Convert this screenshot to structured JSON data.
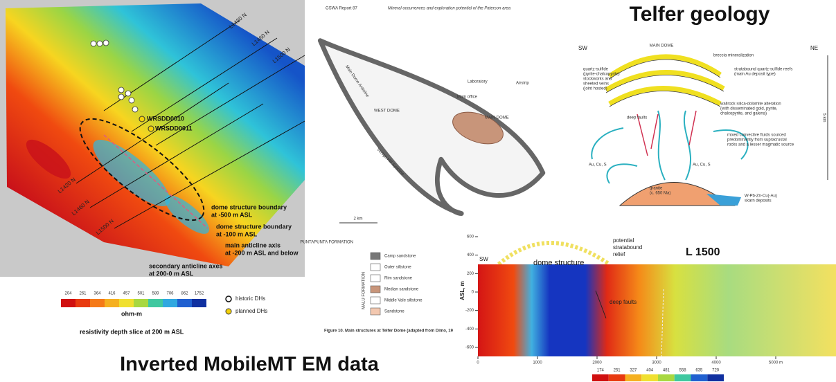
{
  "left_map": {
    "line_labels": [
      "L1430 N",
      "L1460 N",
      "L1500 N",
      "L1420 N",
      "L1460 N",
      "L1500 N"
    ],
    "drillholes": [
      "WRSDD0010",
      "WRSDD0011"
    ],
    "annotations": [
      [
        "dome structure boundary",
        "at -500 m ASL"
      ],
      [
        "dome structure boundary",
        "at -100 m ASL"
      ],
      [
        "main anticline axis",
        "at -200 m ASL and below"
      ],
      [
        "secondary anticline axes",
        "at 200-0 m ASL"
      ]
    ],
    "colorbar_ticks": [
      204,
      261,
      364,
      416,
      457,
      501,
      589,
      706,
      862,
      1752
    ],
    "unit": "ohm-m",
    "legend": [
      "historic DHs",
      "planned DHs"
    ],
    "caption": "resistivity depth slice at 200 m ASL"
  },
  "middle_map": {
    "header_left": "GSWA Report 87",
    "header_right": "Mineral occurrences and exploration potential of the Paterson area",
    "labels": [
      "WEST DOME",
      "MAIN DOME",
      "Laboratory",
      "Main office",
      "Main Dome Anticline",
      "Vertigo Hill Syncline",
      "Airstrip"
    ],
    "scale": "2 km",
    "legend_formation": "PUNTAPUNTA FORMATION",
    "legend_member": "MALU FORMATION",
    "legend_items": [
      "Camp sandstone",
      "Outer siltstone",
      "Rim sandstone",
      "Median sandstone",
      "Middle Vale siltstone",
      "Sandstone"
    ],
    "caption": "Figure 10. Main structures at Telfer Dome (adapted from Dimo, 19"
  },
  "telfer_geology": {
    "title": "Telfer geology",
    "sw": "SW",
    "ne": "NE",
    "main_dome": "MAIN DOME",
    "labels": [
      [
        "breccia mineralization"
      ],
      [
        "quartz-sulfide",
        "(pyrite-chalcopyrite)",
        "stockworks and",
        "sheeted veins",
        "(joint hosted)"
      ],
      [
        "stratabound quartz-sulfide reefs",
        "(main Au deposit type)"
      ],
      [
        "wallrock silica-dolomite alteration",
        "(with disseminated gold, pyrite,",
        "chalcopyrite, and galena)"
      ],
      [
        "deep faults"
      ],
      [
        "mixed convective fluids sourced",
        "predominantly from supracrustal",
        "rocks and a lesser magmatic source"
      ],
      [
        "Au, Cu, S"
      ],
      [
        "Au, Cu, S"
      ],
      [
        "granite",
        "(c. 650 Ma)"
      ],
      [
        "W-Pb-Zn-Cu(-Au)",
        "skarn deposits"
      ]
    ],
    "depth": "5 km"
  },
  "section": {
    "title": "L 1500",
    "sw": "SW",
    "labels": [
      "dome structure",
      "deep faults"
    ],
    "relief": [
      "potential",
      "stratabound",
      "relief"
    ],
    "y_label": "ASL, m",
    "yticks": [
      600,
      400,
      200,
      0,
      -200,
      -400,
      -600
    ],
    "xticks": [
      "0",
      "1000",
      "2000",
      "3000",
      "4000",
      "5000 m"
    ],
    "colorbar_ticks": [
      174,
      251,
      327,
      404,
      481,
      558,
      635,
      720
    ]
  },
  "caption": "Inverted MobileMT EM data"
}
